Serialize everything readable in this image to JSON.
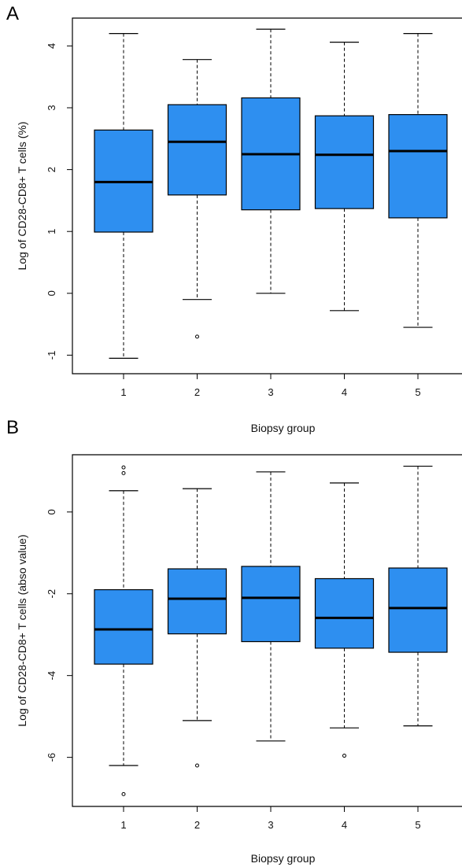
{
  "panels": [
    {
      "letter": "A"
    },
    {
      "letter": "B"
    }
  ],
  "chart_data": [
    {
      "type": "boxplot",
      "panel": "A",
      "xlabel": "Biopsy group",
      "ylabel": "Log of CD28-CD8+ T cells (%)",
      "categories": [
        "1",
        "2",
        "3",
        "4",
        "5"
      ],
      "ylim": [
        -1.3,
        4.45
      ],
      "yticks": [
        -1,
        0,
        1,
        2,
        3,
        4
      ],
      "box_color": "#2e8ff0",
      "grid": false,
      "boxes": [
        {
          "group": "1",
          "whisker_low": -1.05,
          "q1": 0.99,
          "median": 1.8,
          "q3": 2.64,
          "whisker_high": 4.2,
          "outliers": []
        },
        {
          "group": "2",
          "whisker_low": -0.1,
          "q1": 1.59,
          "median": 2.45,
          "q3": 3.05,
          "whisker_high": 3.78,
          "outliers": [
            -0.7
          ]
        },
        {
          "group": "3",
          "whisker_low": 0.0,
          "q1": 1.35,
          "median": 2.25,
          "q3": 3.16,
          "whisker_high": 4.27,
          "outliers": []
        },
        {
          "group": "4",
          "whisker_low": -0.28,
          "q1": 1.37,
          "median": 2.24,
          "q3": 2.87,
          "whisker_high": 4.06,
          "outliers": []
        },
        {
          "group": "5",
          "whisker_low": -0.55,
          "q1": 1.22,
          "median": 2.3,
          "q3": 2.89,
          "whisker_high": 4.2,
          "outliers": []
        }
      ]
    },
    {
      "type": "boxplot",
      "panel": "B",
      "xlabel": "Biopsy group",
      "ylabel": "Log of CD28-CD8+ T cells (abso value)",
      "categories": [
        "1",
        "2",
        "3",
        "4",
        "5"
      ],
      "ylim": [
        -7.2,
        1.4
      ],
      "yticks": [
        -6,
        -4,
        -2,
        0
      ],
      "box_color": "#2e8ff0",
      "grid": false,
      "boxes": [
        {
          "group": "1",
          "whisker_low": -6.2,
          "q1": -3.72,
          "median": -2.87,
          "q3": -1.9,
          "whisker_high": 0.52,
          "outliers": [
            -6.9,
            0.95,
            1.09
          ]
        },
        {
          "group": "2",
          "whisker_low": -5.1,
          "q1": -2.98,
          "median": -2.12,
          "q3": -1.39,
          "whisker_high": 0.57,
          "outliers": [
            -6.2
          ]
        },
        {
          "group": "3",
          "whisker_low": -5.6,
          "q1": -3.17,
          "median": -2.1,
          "q3": -1.33,
          "whisker_high": 0.98,
          "outliers": []
        },
        {
          "group": "4",
          "whisker_low": -5.28,
          "q1": -3.33,
          "median": -2.59,
          "q3": -1.63,
          "whisker_high": 0.71,
          "outliers": [
            -5.96
          ]
        },
        {
          "group": "5",
          "whisker_low": -5.23,
          "q1": -3.43,
          "median": -2.35,
          "q3": -1.37,
          "whisker_high": 1.12,
          "outliers": []
        }
      ]
    }
  ]
}
